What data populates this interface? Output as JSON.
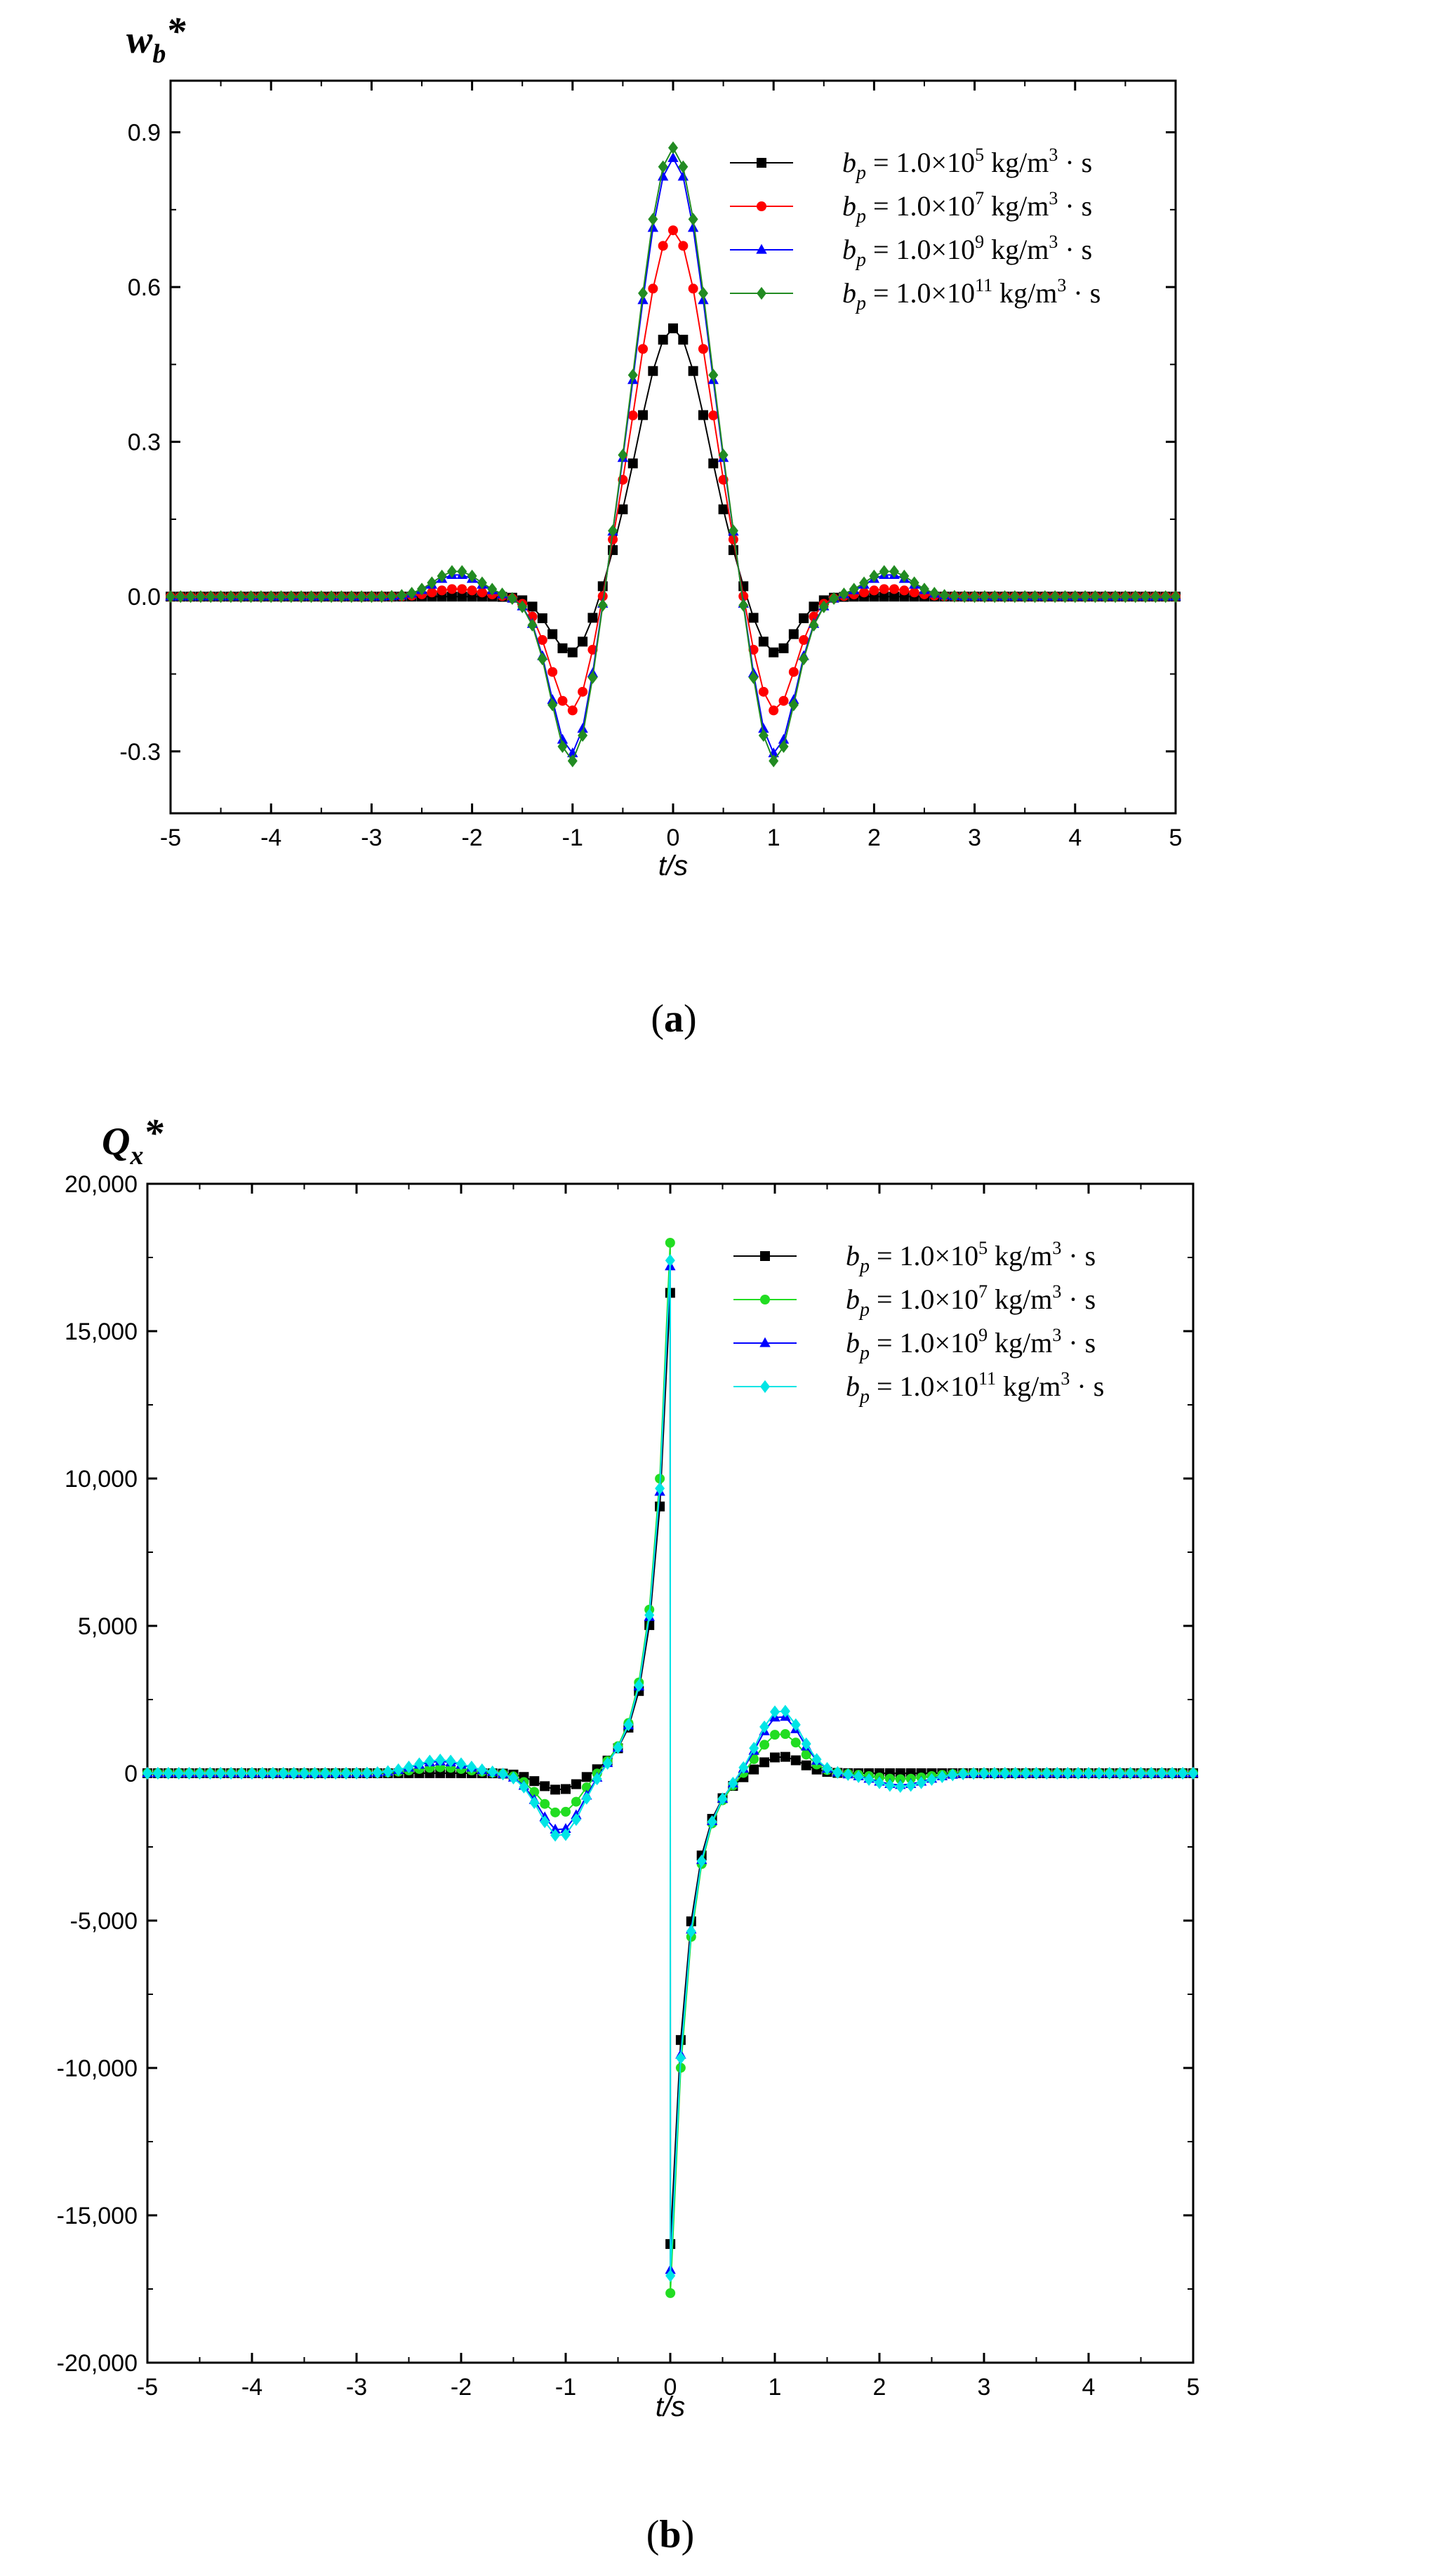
{
  "chart_data": [
    {
      "type": "line",
      "panel_label": "a",
      "ylabel": "w",
      "ylabel_sub": "b",
      "ylabel_sup": "*",
      "xlabel": "t/s",
      "xlim": [
        -5,
        5
      ],
      "ylim": [
        -0.42,
        1.0
      ],
      "xticks": [
        "-5",
        "-4",
        "-3",
        "-2",
        "-1",
        "0",
        "1",
        "2",
        "3",
        "4",
        "5"
      ],
      "xtick_values": [
        -5,
        -4,
        -3,
        -2,
        -1,
        0,
        1,
        2,
        3,
        4,
        5
      ],
      "yticks": [
        "-0.3",
        "0.0",
        "0.3",
        "0.6",
        "0.9"
      ],
      "ytick_values": [
        -0.3,
        0.0,
        0.3,
        0.6,
        0.9
      ],
      "legend_location": "top-right",
      "series": [
        {
          "name": "b_p = 1.0×10^5 kg/m^3·s",
          "legend_base": "b",
          "legend_sub": "p",
          "legend_mid": " = 1.0×10",
          "legend_exp": "5",
          "legend_unit": " kg/m",
          "legend_unit_exp": "3",
          "legend_tail": " · s",
          "color": "#000000",
          "marker": "square",
          "amp": 0.52,
          "dip": 0.115,
          "hump": 0.0,
          "w": 0.34
        },
        {
          "name": "b_p = 1.0×10^7 kg/m^3·s",
          "legend_base": "b",
          "legend_sub": "p",
          "legend_mid": " = 1.0×10",
          "legend_exp": "7",
          "legend_unit": " kg/m",
          "legend_unit_exp": "3",
          "legend_tail": " · s",
          "color": "#ff0000",
          "marker": "circle",
          "amp": 0.71,
          "dip": 0.23,
          "hump": 0.015,
          "w": 0.34
        },
        {
          "name": "b_p = 1.0×10^9 kg/m^3·s",
          "legend_base": "b",
          "legend_sub": "p",
          "legend_mid": " = 1.0×10",
          "legend_exp": "9",
          "legend_unit": " kg/m",
          "legend_unit_exp": "3",
          "legend_tail": " · s",
          "color": "#0000ff",
          "marker": "triangle",
          "amp": 0.85,
          "dip": 0.315,
          "hump": 0.043,
          "w": 0.34
        },
        {
          "name": "b_p = 1.0×10^11 kg/m^3·s",
          "legend_base": "b",
          "legend_sub": "p",
          "legend_mid": " = 1.0×10",
          "legend_exp": "11",
          "legend_unit": " kg/m",
          "legend_unit_exp": "3",
          "legend_tail": " · s",
          "color": "#228b22",
          "marker": "diamond",
          "amp": 0.87,
          "dip": 0.33,
          "hump": 0.05,
          "w": 0.34
        }
      ]
    },
    {
      "type": "line",
      "panel_label": "b",
      "ylabel": "Q",
      "ylabel_sub": "x",
      "ylabel_sup": "*",
      "xlabel": "t/s",
      "xlim": [
        -5,
        5
      ],
      "ylim": [
        -20000,
        20000
      ],
      "xticks": [
        "-5",
        "-4",
        "-3",
        "-2",
        "-1",
        "0",
        "1",
        "2",
        "3",
        "4",
        "5"
      ],
      "xtick_values": [
        -5,
        -4,
        -3,
        -2,
        -1,
        0,
        1,
        2,
        3,
        4,
        5
      ],
      "yticks": [
        "-20,000",
        "-15,000",
        "-10,000",
        "-5,000",
        "0",
        "5,000",
        "10,000",
        "15,000",
        "20,000"
      ],
      "ytick_values": [
        -20000,
        -15000,
        -10000,
        -5000,
        0,
        5000,
        10000,
        15000,
        20000
      ],
      "legend_location": "top-right",
      "series": [
        {
          "name": "b_p = 1.0×10^5 kg/m^3·s",
          "legend_base": "b",
          "legend_sub": "p",
          "legend_mid": " = 1.0×10",
          "legend_exp": "5",
          "legend_unit": " kg/m",
          "legend_unit_exp": "3",
          "legend_tail": " · s",
          "color": "#000000",
          "marker": "square",
          "amp": 16300,
          "dip": 600,
          "hump": 0,
          "w": 0.34
        },
        {
          "name": "b_p = 1.0×10^7 kg/m^3·s",
          "legend_base": "b",
          "legend_sub": "p",
          "legend_mid": " = 1.0×10",
          "legend_exp": "7",
          "legend_unit": " kg/m",
          "legend_unit_exp": "3",
          "legend_tail": " · s",
          "color": "#22dd22",
          "marker": "circle",
          "amp": 18000,
          "dip": 1400,
          "hump": 200,
          "w": 0.34
        },
        {
          "name": "b_p = 1.0×10^9 kg/m^3·s",
          "legend_base": "b",
          "legend_sub": "p",
          "legend_mid": " = 1.0×10",
          "legend_exp": "9",
          "legend_unit": " kg/m",
          "legend_unit_exp": "3",
          "legend_tail": " · s",
          "color": "#0000ff",
          "marker": "triangle",
          "amp": 17200,
          "dip": 2000,
          "hump": 400,
          "w": 0.34
        },
        {
          "name": "b_p = 1.0×10^11 kg/m^3·s",
          "legend_base": "b",
          "legend_sub": "p",
          "legend_mid": " = 1.0×10",
          "legend_exp": "11",
          "legend_unit": " kg/m",
          "legend_unit_exp": "3",
          "legend_tail": " · s",
          "color": "#00e5e5",
          "marker": "diamond",
          "amp": 17400,
          "dip": 2200,
          "hump": 450,
          "w": 0.34
        }
      ]
    }
  ]
}
